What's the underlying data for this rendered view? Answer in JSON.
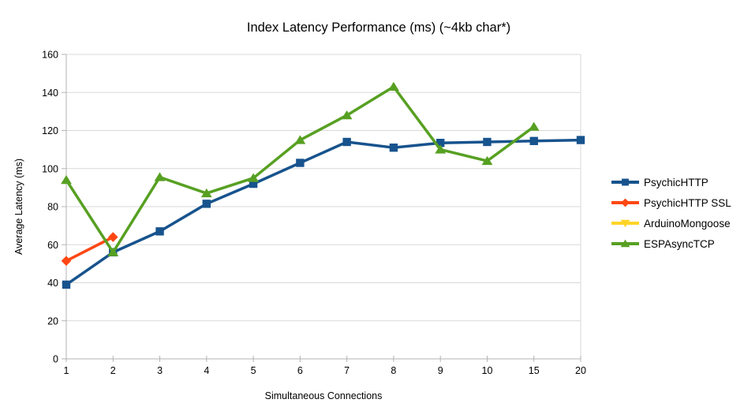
{
  "chart_data": {
    "type": "line",
    "title": "Index Latency Performance (ms) (~4kb char*)",
    "xlabel": "Simultaneous Connections",
    "ylabel": "Average Latency (ms)",
    "categories": [
      "1",
      "2",
      "3",
      "4",
      "5",
      "6",
      "7",
      "8",
      "9",
      "10",
      "15",
      "20"
    ],
    "ylim": [
      0,
      160
    ],
    "ytick_step": 20,
    "ytick_labels": [
      "0",
      "20",
      "40",
      "60",
      "80",
      "100",
      "120",
      "140",
      "160"
    ],
    "grid": "horizontal",
    "legend_position": "right",
    "series": [
      {
        "name": "PsychicHTTP",
        "color": "#17538D",
        "marker": "square",
        "values": [
          39,
          56,
          67,
          81.5,
          92,
          103,
          114,
          111,
          113.5,
          114,
          114.5,
          115
        ]
      },
      {
        "name": "PsychicHTTP SSL",
        "color": "#FF4713",
        "marker": "diamond",
        "values": [
          51.5,
          64,
          null,
          null,
          null,
          null,
          null,
          null,
          null,
          null,
          null,
          null
        ]
      },
      {
        "name": "ArduinoMongoose",
        "color": "#FFD428",
        "marker": "triangle-down",
        "values": [
          null,
          null,
          null,
          null,
          null,
          null,
          null,
          null,
          null,
          null,
          null,
          null
        ]
      },
      {
        "name": "ESPAsyncTCP",
        "color": "#57A022",
        "marker": "triangle-up",
        "values": [
          94,
          56,
          95.5,
          87,
          95,
          115,
          128,
          143,
          110,
          104,
          122,
          null
        ]
      }
    ],
    "colors": {
      "background": "#ffffff",
      "axis": "#b3b3b3",
      "grid": "#d9d9d9",
      "text": "#000000"
    }
  }
}
